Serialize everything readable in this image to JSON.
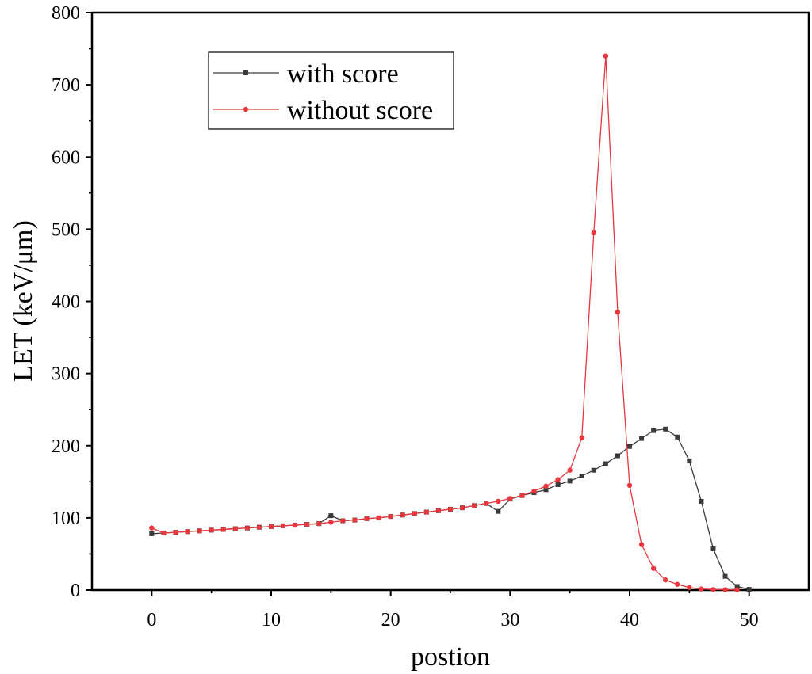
{
  "chart_data": {
    "type": "line",
    "xlabel": "postion",
    "ylabel": "LET (keV/μm)",
    "xlim": [
      -5,
      55
    ],
    "ylim": [
      0,
      800
    ],
    "xticks": [
      0,
      10,
      20,
      30,
      40,
      50
    ],
    "yticks": [
      0,
      100,
      200,
      300,
      400,
      500,
      600,
      700,
      800
    ],
    "grid": false,
    "legend_position": "top-left",
    "series": [
      {
        "name": "with score",
        "color": "#3a3a3a",
        "marker": "square",
        "x": [
          0,
          1,
          2,
          3,
          4,
          5,
          6,
          7,
          8,
          9,
          10,
          11,
          12,
          13,
          14,
          15,
          16,
          17,
          18,
          19,
          20,
          21,
          22,
          23,
          24,
          25,
          26,
          27,
          28,
          29,
          30,
          31,
          32,
          33,
          34,
          35,
          36,
          37,
          38,
          39,
          40,
          41,
          42,
          43,
          44,
          45,
          46,
          47,
          48,
          49,
          50
        ],
        "y": [
          78,
          79,
          80,
          81,
          82,
          83,
          84,
          85,
          86,
          87,
          88,
          89,
          90,
          91,
          92,
          103,
          96,
          97,
          99,
          100,
          102,
          104,
          106,
          108,
          110,
          112,
          114,
          117,
          120,
          109,
          126,
          131,
          135,
          139,
          146,
          151,
          158,
          166,
          175,
          186,
          199,
          210,
          221,
          223,
          212,
          179,
          123,
          57,
          19,
          5,
          1
        ]
      },
      {
        "name": "without score",
        "color": "#e8383d",
        "marker": "circle",
        "x": [
          0,
          1,
          2,
          3,
          4,
          5,
          6,
          7,
          8,
          9,
          10,
          11,
          12,
          13,
          14,
          15,
          16,
          17,
          18,
          19,
          20,
          21,
          22,
          23,
          24,
          25,
          26,
          27,
          28,
          29,
          30,
          31,
          32,
          33,
          34,
          35,
          36,
          37,
          38,
          39,
          40,
          41,
          42,
          43,
          44,
          45,
          46,
          47,
          48,
          49
        ],
        "y": [
          86,
          79,
          80,
          81,
          82,
          83,
          84,
          85,
          86,
          87,
          88,
          89,
          90,
          91,
          92,
          94,
          96,
          97,
          99,
          100,
          102,
          104,
          106,
          108,
          110,
          112,
          114,
          117,
          120,
          123,
          127,
          131,
          137,
          144,
          153,
          166,
          211,
          495,
          740,
          385,
          145,
          63,
          30,
          14,
          8,
          3.5,
          1.5,
          0.8,
          0.4,
          0.2
        ]
      }
    ]
  }
}
